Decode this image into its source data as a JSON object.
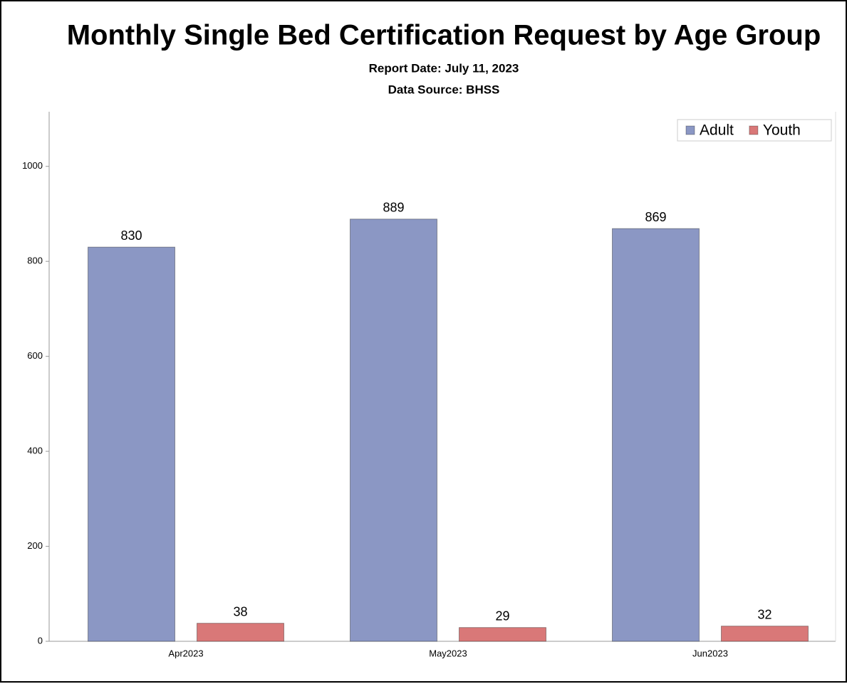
{
  "chart_data": {
    "type": "bar",
    "title": "Monthly Single Bed Certification Request by Age Group",
    "subtitles": [
      "Report Date: July 11, 2023",
      "Data Source: BHSS"
    ],
    "categories": [
      "Apr2023",
      "May2023",
      "Jun2023"
    ],
    "series": [
      {
        "name": "Adult",
        "color": "#8b97c4",
        "values": [
          830,
          889,
          869
        ]
      },
      {
        "name": "Youth",
        "color": "#d97878",
        "values": [
          38,
          29,
          32
        ]
      }
    ],
    "ylim": [
      0,
      1115
    ],
    "yticks": [
      0,
      200,
      400,
      600,
      800,
      1000
    ],
    "legend": "top-right",
    "grid": false
  }
}
